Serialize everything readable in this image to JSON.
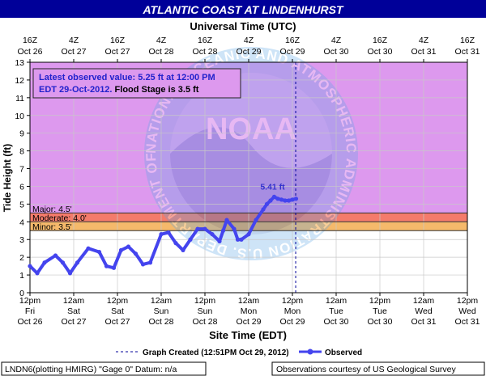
{
  "chart_data": {
    "type": "line",
    "title": "ATLANTIC COAST AT LINDENHURST",
    "top_axis_label": "Universal Time (UTC)",
    "bottom_axis_label": "Site Time (EDT)",
    "ylabel": "Tide Height (ft)",
    "ylim": [
      0,
      13
    ],
    "yticks": [
      0,
      1,
      2,
      3,
      4,
      5,
      6,
      7,
      8,
      9,
      10,
      11,
      12,
      13
    ],
    "x_range_hours_from_oct26_12pm_edt": [
      0,
      120
    ],
    "top_ticks": [
      {
        "l1": "16Z",
        "l2": "Oct 26",
        "h": 0
      },
      {
        "l1": "4Z",
        "l2": "Oct 27",
        "h": 12
      },
      {
        "l1": "16Z",
        "l2": "Oct 27",
        "h": 24
      },
      {
        "l1": "4Z",
        "l2": "Oct 28",
        "h": 36
      },
      {
        "l1": "16Z",
        "l2": "Oct 28",
        "h": 48
      },
      {
        "l1": "4Z",
        "l2": "Oct 29",
        "h": 60
      },
      {
        "l1": "16Z",
        "l2": "Oct 29",
        "h": 72
      },
      {
        "l1": "4Z",
        "l2": "Oct 30",
        "h": 84
      },
      {
        "l1": "16Z",
        "l2": "Oct 30",
        "h": 96
      },
      {
        "l1": "4Z",
        "l2": "Oct 31",
        "h": 108
      },
      {
        "l1": "16Z",
        "l2": "Oct 31",
        "h": 120
      }
    ],
    "bottom_ticks": [
      {
        "l1": "12pm",
        "l2": "Fri",
        "l3": "Oct 26",
        "h": 0
      },
      {
        "l1": "12am",
        "l2": "Sat",
        "l3": "Oct 27",
        "h": 12
      },
      {
        "l1": "12pm",
        "l2": "Sat",
        "l3": "Oct 27",
        "h": 24
      },
      {
        "l1": "12am",
        "l2": "Sun",
        "l3": "Oct 28",
        "h": 36
      },
      {
        "l1": "12pm",
        "l2": "Sun",
        "l3": "Oct 28",
        "h": 48
      },
      {
        "l1": "12am",
        "l2": "Mon",
        "l3": "Oct 29",
        "h": 60
      },
      {
        "l1": "12pm",
        "l2": "Mon",
        "l3": "Oct 29",
        "h": 72
      },
      {
        "l1": "12am",
        "l2": "Tue",
        "l3": "Oct 30",
        "h": 84
      },
      {
        "l1": "12pm",
        "l2": "Tue",
        "l3": "Oct 30",
        "h": 96
      },
      {
        "l1": "12am",
        "l2": "Wed",
        "l3": "Oct 31",
        "h": 108
      },
      {
        "l1": "12pm",
        "l2": "Wed",
        "l3": "Oct 31",
        "h": 120
      }
    ],
    "flood_categories": [
      {
        "label": "Major: 4.5'",
        "from": 4.5,
        "to": 13,
        "color": "#dd99ee"
      },
      {
        "label": "Moderate: 4.0'",
        "from": 4.0,
        "to": 4.5,
        "color": "#f47b6b"
      },
      {
        "label": "Minor: 3.5'",
        "from": 3.5,
        "to": 4.0,
        "color": "#f5b96b"
      }
    ],
    "below_color": "#ffffff",
    "flood_line_color": "#333333",
    "series": [
      {
        "name": "Observed",
        "color": "#4444ee",
        "x": [
          0,
          2,
          4,
          7,
          9,
          11,
          13,
          16,
          19,
          21,
          23,
          25,
          27,
          29,
          31,
          33,
          36,
          38,
          40,
          42,
          44,
          46,
          48,
          50,
          52,
          53,
          54,
          56,
          57,
          58,
          60,
          62,
          64,
          65,
          66,
          67,
          68,
          69,
          70,
          71,
          72,
          73
        ],
        "y": [
          1.5,
          1.1,
          1.7,
          2.1,
          1.7,
          1.1,
          1.7,
          2.5,
          2.3,
          1.5,
          1.4,
          2.4,
          2.6,
          2.2,
          1.6,
          1.7,
          3.3,
          3.4,
          2.8,
          2.4,
          3.0,
          3.6,
          3.6,
          3.3,
          2.9,
          3.5,
          4.1,
          3.6,
          3.0,
          3.0,
          3.3,
          4.1,
          4.7,
          5.0,
          5.2,
          5.41,
          5.3,
          5.25,
          5.2,
          5.2,
          5.25,
          5.3
        ]
      }
    ],
    "peak_label": "5.41 ft",
    "peak": {
      "x": 67,
      "y": 5.41
    },
    "graph_created_hour": 72.9,
    "legend": {
      "graph_created": "Graph Created (12:51PM Oct 29, 2012)",
      "observed": "Observed"
    },
    "info_box": {
      "line1": "Latest observed value: 5.25 ft at 12:00 PM",
      "line2_a": "EDT 29-Oct-2012. ",
      "line2_b": "Flood Stage is 3.5 ft"
    },
    "watermark": {
      "center": "NOAA",
      "text": "NATIONAL OCEANIC AND ATMOSPHERIC ADMINISTRATION U.S. DEPARTMENT OF COMMERCE"
    },
    "footer_left": "LNDN6(plotting HMIRG) \"Gage 0\" Datum: n/a",
    "footer_right": "Observations courtesy of US Geological Survey",
    "colors": {
      "title_bg": "#000099",
      "title_fg": "#ffffff",
      "info_fg": "#2222cc",
      "peak_fg": "#3333cc"
    }
  }
}
